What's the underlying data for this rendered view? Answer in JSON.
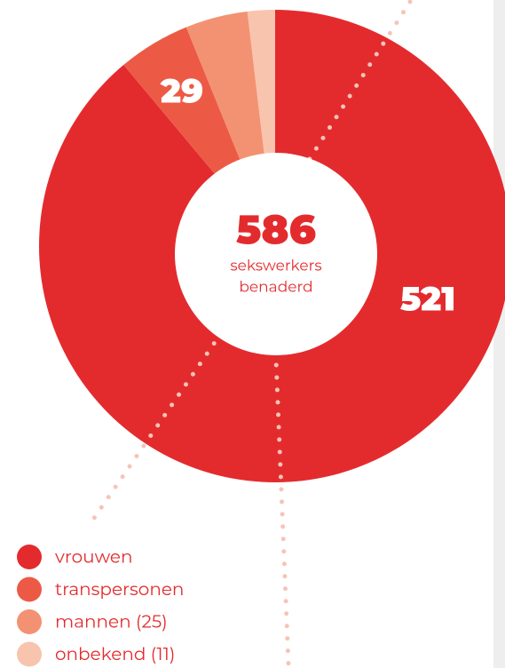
{
  "chart_data": {
    "type": "donut",
    "center_value": 586,
    "center_text_lines": [
      "sekswerkers",
      "benaderd"
    ],
    "categories": [
      "vrouwen",
      "transpersonen",
      "mannen (25)",
      "onbekend (11)"
    ],
    "values": [
      521,
      29,
      25,
      11
    ],
    "value_labels": [
      "521",
      "29",
      null,
      null
    ],
    "colors": [
      "#e32b2e",
      "#ec5a45",
      "#f39272",
      "#f8c4ae"
    ]
  }
}
